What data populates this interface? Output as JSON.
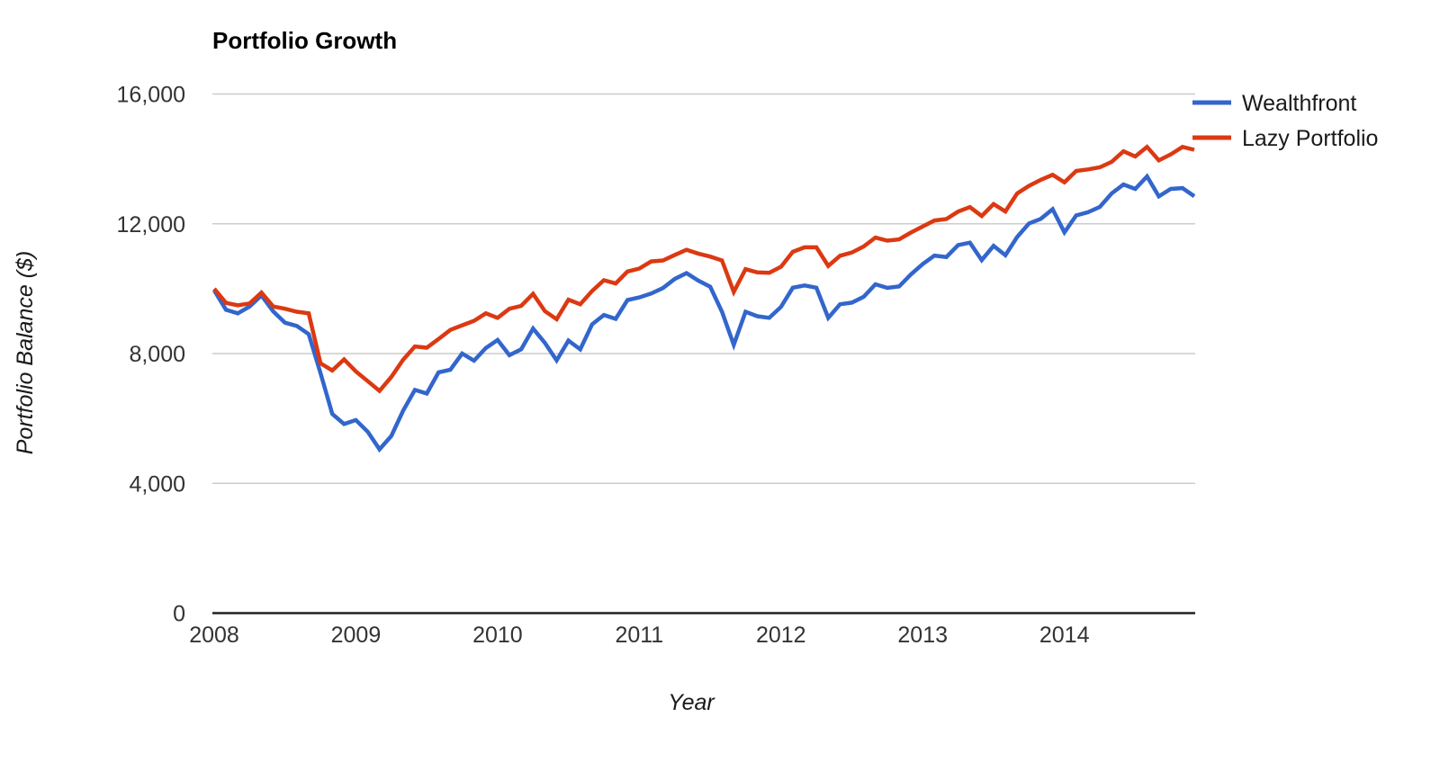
{
  "title": "Portfolio Growth",
  "legend": [
    {
      "label": "Wealthfront",
      "color": "#3366CC"
    },
    {
      "label": "Lazy Portfolio",
      "color": "#DC3912"
    }
  ],
  "axes": {
    "x_title": "Year",
    "y_title": "Portfolio Balance ($)",
    "x_tick_labels": [
      "2008",
      "2009",
      "2010",
      "2011",
      "2012",
      "2013",
      "2014"
    ],
    "y_tick_labels": [
      "0",
      "4,000",
      "8,000",
      "12,000",
      "16,000"
    ]
  },
  "chart_data": {
    "type": "line",
    "title": "Portfolio Growth",
    "xlabel": "Year",
    "ylabel": "Portfolio Balance ($)",
    "x_unit": "month",
    "x_start": "2008-01",
    "x_end": "2014-12",
    "points_per_series": 84,
    "ylim": [
      0,
      16000
    ],
    "y_ticks": [
      16000,
      12000,
      8000,
      4000,
      0
    ],
    "x_tick_years": [
      2008,
      2009,
      2010,
      2011,
      2012,
      2013,
      2014
    ],
    "grid": "horizontal",
    "legend_position": "right",
    "series": [
      {
        "name": "Wealthfront",
        "color": "#3366CC",
        "values": [
          9950,
          9350,
          9240,
          9450,
          9790,
          9300,
          8950,
          8850,
          8600,
          7400,
          6140,
          5830,
          5950,
          5590,
          5050,
          5460,
          6240,
          6880,
          6770,
          7420,
          7500,
          8000,
          7780,
          8170,
          8420,
          7950,
          8130,
          8770,
          8330,
          7790,
          8400,
          8130,
          8900,
          9190,
          9070,
          9650,
          9730,
          9850,
          10020,
          10300,
          10480,
          10250,
          10060,
          9290,
          8270,
          9290,
          9150,
          9100,
          9440,
          10030,
          10100,
          10030,
          9100,
          9520,
          9570,
          9750,
          10135,
          10025,
          10070,
          10440,
          10760,
          11020,
          10975,
          11345,
          11420,
          10880,
          11320,
          11030,
          11595,
          12010,
          12150,
          12450,
          11735,
          12260,
          12355,
          12520,
          12935,
          13210,
          13075,
          13460,
          12845,
          13075,
          13100,
          12850
        ]
      },
      {
        "name": "Lazy Portfolio",
        "color": "#DC3912",
        "values": [
          10000,
          9560,
          9490,
          9545,
          9880,
          9450,
          9380,
          9290,
          9240,
          7700,
          7480,
          7820,
          7450,
          7150,
          6850,
          7280,
          7810,
          8220,
          8180,
          8450,
          8730,
          8870,
          9010,
          9240,
          9100,
          9380,
          9470,
          9840,
          9310,
          9060,
          9660,
          9520,
          9930,
          10260,
          10160,
          10530,
          10620,
          10840,
          10870,
          11040,
          11200,
          11080,
          10990,
          10870,
          9900,
          10600,
          10500,
          10490,
          10675,
          11135,
          11275,
          11275,
          10700,
          11015,
          11115,
          11300,
          11575,
          11480,
          11520,
          11730,
          11915,
          12100,
          12145,
          12375,
          12515,
          12240,
          12610,
          12380,
          12935,
          13170,
          13355,
          13510,
          13280,
          13630,
          13675,
          13740,
          13910,
          14235,
          14075,
          14370,
          13955,
          14140,
          14370,
          14280
        ]
      }
    ]
  },
  "style": {
    "grid_color": "#CCCCCC",
    "baseline_color": "#222222"
  }
}
